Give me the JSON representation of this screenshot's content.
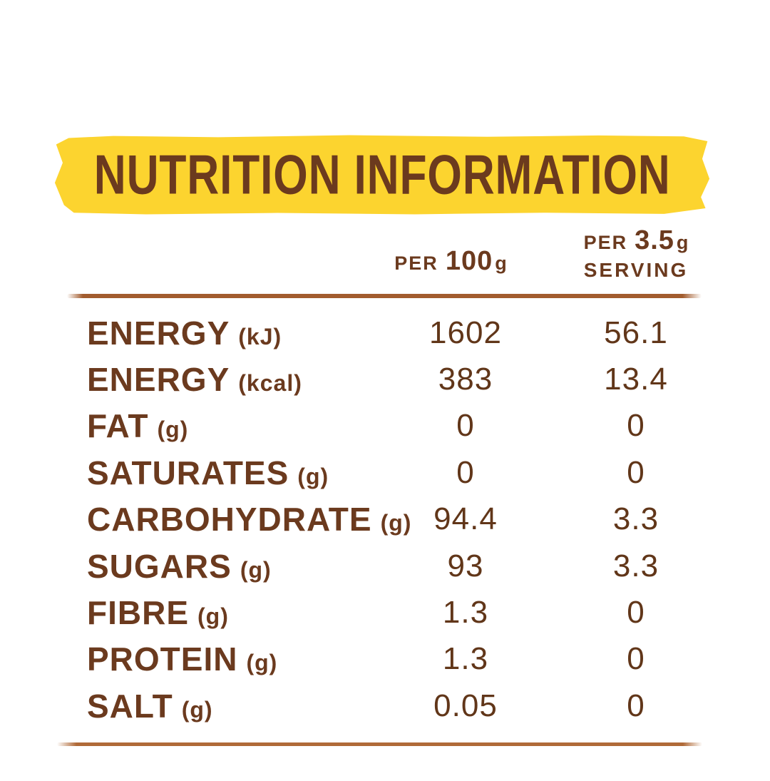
{
  "banner": {
    "title": "NUTRITION INFORMATION"
  },
  "table": {
    "columns": [
      {
        "prefix": "PER",
        "amount": "100",
        "unit": "g",
        "suffix": ""
      },
      {
        "prefix": "PER",
        "amount": "3.5",
        "unit": "g",
        "suffix": "SERVING"
      }
    ],
    "rows": [
      {
        "label": "ENERGY",
        "unit": "(kJ)",
        "per100": "1602",
        "perServing": "56.1"
      },
      {
        "label": "ENERGY",
        "unit": "(kcal)",
        "per100": "383",
        "perServing": "13.4"
      },
      {
        "label": "FAT",
        "unit": "(g)",
        "per100": "0",
        "perServing": "0"
      },
      {
        "label": "SATURATES",
        "unit": "(g)",
        "per100": "0",
        "perServing": "0"
      },
      {
        "label": "CARBOHYDRATE",
        "unit": "(g)",
        "per100": "94.4",
        "perServing": "3.3"
      },
      {
        "label": "SUGARS",
        "unit": "(g)",
        "per100": "93",
        "perServing": "3.3"
      },
      {
        "label": "FIBRE",
        "unit": "(g)",
        "per100": "1.3",
        "perServing": "0"
      },
      {
        "label": "PROTEIN",
        "unit": "(g)",
        "per100": "1.3",
        "perServing": "0"
      },
      {
        "label": "SALT",
        "unit": "(g)",
        "per100": "0.05",
        "perServing": "0"
      }
    ]
  },
  "colors": {
    "banner_yellow": "#FCD42F",
    "text_brown": "#6B3A1E",
    "number_brown": "#613619",
    "rule_brown": "#A25C2E",
    "rule_brown_light": "#B06A38"
  }
}
